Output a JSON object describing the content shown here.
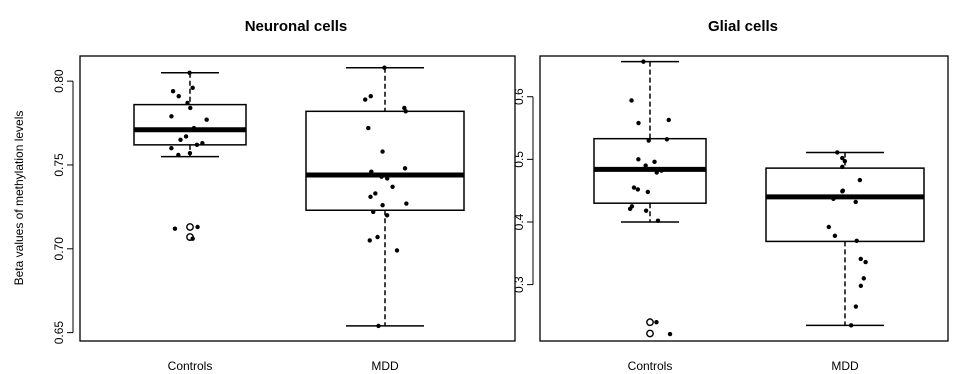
{
  "chart_data": [
    {
      "type": "box",
      "title": "Neuronal cells",
      "ylabel": "Beta values of methylation levels",
      "categories": [
        "Controls",
        "MDD"
      ],
      "ylim": [
        0.645,
        0.815
      ],
      "yticks": [
        0.65,
        0.7,
        0.75,
        0.8
      ],
      "yticklabels": [
        "0.65",
        "0.70",
        "0.75",
        "0.80"
      ],
      "boxes": [
        {
          "category": "Controls",
          "whisker_low": 0.755,
          "q1": 0.762,
          "median": 0.771,
          "q3": 0.786,
          "whisker_high": 0.805,
          "outliers": [
            0.713,
            0.707
          ]
        },
        {
          "category": "MDD",
          "whisker_low": 0.654,
          "q1": 0.723,
          "median": 0.744,
          "q3": 0.782,
          "whisker_high": 0.808,
          "outliers": []
        }
      ],
      "points": [
        {
          "category": "Controls",
          "values": [
            0.805,
            0.796,
            0.794,
            0.791,
            0.787,
            0.784,
            0.779,
            0.777,
            0.772,
            0.767,
            0.765,
            0.763,
            0.762,
            0.76,
            0.757,
            0.756,
            0.713,
            0.712,
            0.706
          ]
        },
        {
          "category": "MDD",
          "values": [
            0.808,
            0.791,
            0.789,
            0.784,
            0.782,
            0.772,
            0.758,
            0.748,
            0.746,
            0.743,
            0.742,
            0.737,
            0.733,
            0.731,
            0.727,
            0.726,
            0.722,
            0.72,
            0.707,
            0.705,
            0.699,
            0.654
          ]
        }
      ]
    },
    {
      "type": "box",
      "title": "Glial cells",
      "ylabel": "",
      "categories": [
        "Controls",
        "MDD"
      ],
      "ylim": [
        0.21,
        0.665
      ],
      "yticks": [
        0.3,
        0.4,
        0.5,
        0.6
      ],
      "yticklabels": [
        "0.3",
        "0.4",
        "0.5",
        "0.6"
      ],
      "boxes": [
        {
          "category": "Controls",
          "whisker_low": 0.4,
          "q1": 0.43,
          "median": 0.484,
          "q3": 0.533,
          "whisker_high": 0.656,
          "outliers": [
            0.24,
            0.222
          ]
        },
        {
          "category": "MDD",
          "whisker_low": 0.235,
          "q1": 0.369,
          "median": 0.44,
          "q3": 0.486,
          "whisker_high": 0.511,
          "outliers": []
        }
      ],
      "points": [
        {
          "category": "Controls",
          "values": [
            0.656,
            0.594,
            0.563,
            0.558,
            0.532,
            0.53,
            0.5,
            0.496,
            0.49,
            0.482,
            0.479,
            0.455,
            0.452,
            0.448,
            0.425,
            0.421,
            0.418,
            0.402,
            0.24,
            0.221
          ]
        },
        {
          "category": "MDD",
          "values": [
            0.511,
            0.502,
            0.497,
            0.488,
            0.467,
            0.45,
            0.449,
            0.44,
            0.437,
            0.432,
            0.392,
            0.378,
            0.37,
            0.341,
            0.336,
            0.31,
            0.298,
            0.265,
            0.235
          ]
        }
      ]
    }
  ]
}
